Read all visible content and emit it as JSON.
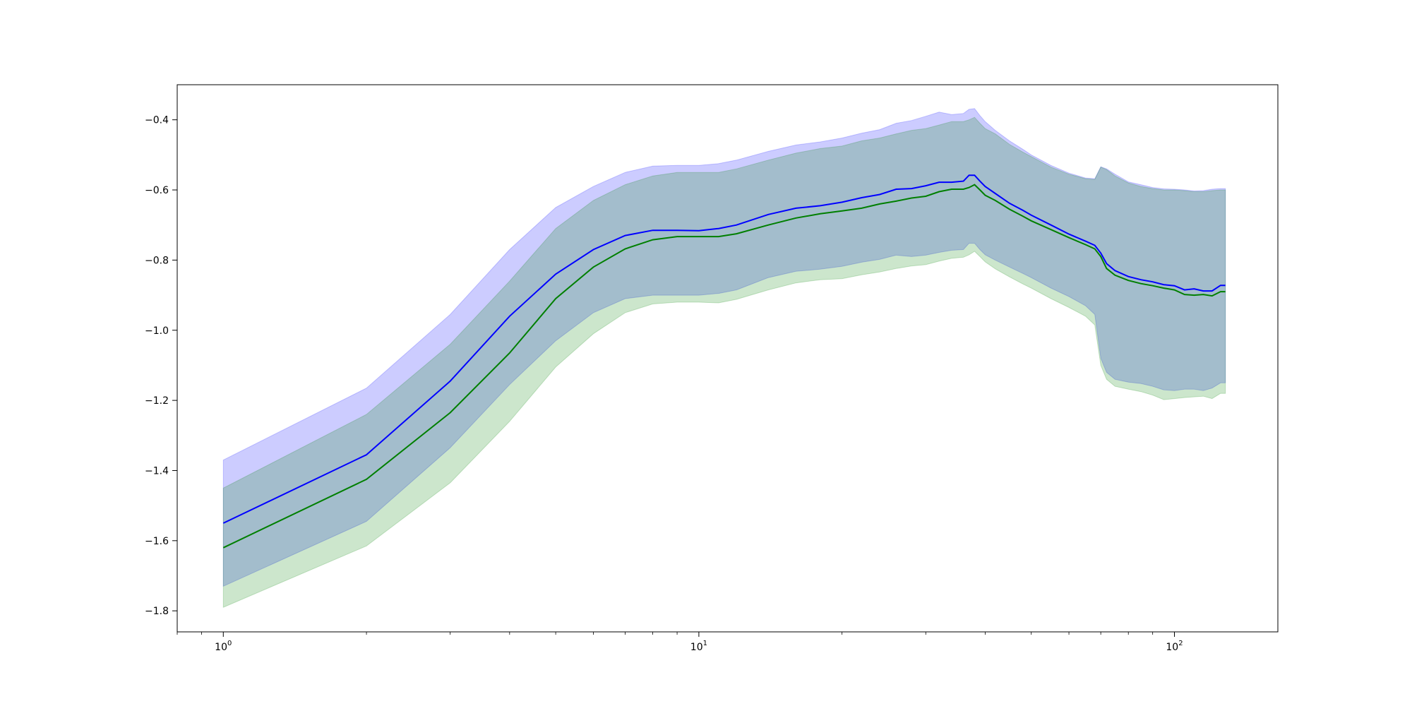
{
  "chart_data": {
    "type": "line",
    "title": "",
    "xlabel": "",
    "ylabel": "",
    "x_scale": "log",
    "xlim": [
      0.8,
      165
    ],
    "ylim": [
      -1.86,
      -0.3
    ],
    "grid": false,
    "x_ticks": [
      {
        "value": 1,
        "base": "10",
        "exp": "0"
      },
      {
        "value": 10,
        "base": "10",
        "exp": "1"
      },
      {
        "value": 100,
        "base": "10",
        "exp": "2"
      }
    ],
    "y_ticks": [
      {
        "value": -0.4,
        "label": "−0.4"
      },
      {
        "value": -0.6,
        "label": "−0.6"
      },
      {
        "value": -0.8,
        "label": "−0.8"
      },
      {
        "value": -1.0,
        "label": "−1.0"
      },
      {
        "value": -1.2,
        "label": "−1.2"
      },
      {
        "value": -1.4,
        "label": "−1.4"
      },
      {
        "value": -1.6,
        "label": "−1.6"
      },
      {
        "value": -1.8,
        "label": "−1.8"
      }
    ],
    "x": [
      1,
      2,
      3,
      4,
      5,
      6,
      7,
      8,
      9,
      10,
      11,
      12,
      14,
      16,
      18,
      20,
      22,
      24,
      26,
      28,
      30,
      32,
      34,
      36,
      37,
      38,
      39,
      40,
      42,
      45,
      48,
      50,
      55,
      60,
      65,
      68,
      70,
      72,
      75,
      80,
      85,
      90,
      95,
      100,
      105,
      110,
      115,
      120,
      125,
      128
    ],
    "series": [
      {
        "color": "#0000ff",
        "band_color": "#0000ff",
        "mean": [
          -1.55,
          -1.355,
          -1.145,
          -0.96,
          -0.84,
          -0.77,
          -0.73,
          -0.715,
          -0.715,
          -0.716,
          -0.71,
          -0.7,
          -0.67,
          -0.652,
          -0.645,
          -0.635,
          -0.622,
          -0.613,
          -0.598,
          -0.596,
          -0.588,
          -0.578,
          -0.578,
          -0.575,
          -0.558,
          -0.558,
          -0.575,
          -0.59,
          -0.61,
          -0.638,
          -0.658,
          -0.672,
          -0.7,
          -0.726,
          -0.746,
          -0.758,
          -0.78,
          -0.81,
          -0.83,
          -0.847,
          -0.856,
          -0.862,
          -0.87,
          -0.873,
          -0.885,
          -0.882,
          -0.888,
          -0.888,
          -0.872,
          -0.872
        ],
        "upper": [
          -1.37,
          -1.165,
          -0.955,
          -0.77,
          -0.65,
          -0.59,
          -0.55,
          -0.532,
          -0.53,
          -0.53,
          -0.525,
          -0.515,
          -0.49,
          -0.472,
          -0.463,
          -0.452,
          -0.438,
          -0.428,
          -0.41,
          -0.402,
          -0.39,
          -0.378,
          -0.385,
          -0.382,
          -0.37,
          -0.368,
          -0.388,
          -0.405,
          -0.43,
          -0.46,
          -0.484,
          -0.5,
          -0.53,
          -0.552,
          -0.566,
          -0.568,
          -0.534,
          -0.54,
          -0.555,
          -0.577,
          -0.585,
          -0.593,
          -0.597,
          -0.598,
          -0.6,
          -0.603,
          -0.602,
          -0.598,
          -0.596,
          -0.596
        ],
        "lower": [
          -1.73,
          -1.545,
          -1.335,
          -1.155,
          -1.03,
          -0.95,
          -0.91,
          -0.9,
          -0.9,
          -0.9,
          -0.895,
          -0.885,
          -0.85,
          -0.832,
          -0.826,
          -0.818,
          -0.806,
          -0.798,
          -0.786,
          -0.79,
          -0.786,
          -0.778,
          -0.772,
          -0.77,
          -0.752,
          -0.752,
          -0.77,
          -0.785,
          -0.8,
          -0.82,
          -0.838,
          -0.85,
          -0.88,
          -0.904,
          -0.93,
          -0.955,
          -1.08,
          -1.12,
          -1.14,
          -1.148,
          -1.152,
          -1.16,
          -1.17,
          -1.172,
          -1.168,
          -1.168,
          -1.172,
          -1.165,
          -1.15,
          -1.15
        ]
      },
      {
        "color": "#007f00",
        "band_color": "#008000",
        "mean": [
          -1.62,
          -1.425,
          -1.235,
          -1.065,
          -0.91,
          -0.82,
          -0.768,
          -0.742,
          -0.733,
          -0.733,
          -0.733,
          -0.725,
          -0.7,
          -0.68,
          -0.668,
          -0.66,
          -0.652,
          -0.64,
          -0.632,
          -0.623,
          -0.618,
          -0.605,
          -0.598,
          -0.598,
          -0.593,
          -0.585,
          -0.6,
          -0.615,
          -0.63,
          -0.655,
          -0.675,
          -0.688,
          -0.713,
          -0.736,
          -0.756,
          -0.768,
          -0.79,
          -0.824,
          -0.843,
          -0.858,
          -0.867,
          -0.873,
          -0.88,
          -0.885,
          -0.898,
          -0.9,
          -0.898,
          -0.902,
          -0.89,
          -0.89
        ],
        "upper": [
          -1.45,
          -1.24,
          -1.04,
          -0.86,
          -0.71,
          -0.63,
          -0.585,
          -0.56,
          -0.55,
          -0.55,
          -0.55,
          -0.54,
          -0.515,
          -0.495,
          -0.482,
          -0.475,
          -0.46,
          -0.452,
          -0.44,
          -0.43,
          -0.425,
          -0.415,
          -0.405,
          -0.405,
          -0.4,
          -0.393,
          -0.41,
          -0.425,
          -0.44,
          -0.47,
          -0.492,
          -0.505,
          -0.535,
          -0.555,
          -0.568,
          -0.57,
          -0.535,
          -0.542,
          -0.56,
          -0.58,
          -0.59,
          -0.596,
          -0.6,
          -0.6,
          -0.602,
          -0.605,
          -0.605,
          -0.602,
          -0.6,
          -0.6
        ],
        "lower": [
          -1.79,
          -1.615,
          -1.435,
          -1.26,
          -1.105,
          -1.01,
          -0.95,
          -0.925,
          -0.92,
          -0.92,
          -0.922,
          -0.912,
          -0.885,
          -0.865,
          -0.856,
          -0.853,
          -0.842,
          -0.834,
          -0.824,
          -0.817,
          -0.813,
          -0.803,
          -0.795,
          -0.792,
          -0.785,
          -0.775,
          -0.79,
          -0.805,
          -0.825,
          -0.848,
          -0.868,
          -0.88,
          -0.91,
          -0.935,
          -0.96,
          -0.985,
          -1.1,
          -1.14,
          -1.16,
          -1.168,
          -1.175,
          -1.185,
          -1.198,
          -1.195,
          -1.192,
          -1.19,
          -1.188,
          -1.195,
          -1.18,
          -1.18
        ]
      }
    ]
  }
}
